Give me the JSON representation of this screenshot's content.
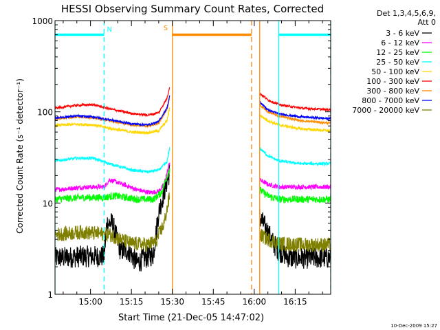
{
  "chart_data": {
    "type": "line",
    "title": "HESSI Observing Summary Count Rates, Corrected",
    "xlabel": "Start Time (21-Dec-05 14:47:02)",
    "ylabel": "Corrected Count Rate (s⁻¹ detector⁻¹)",
    "y_log": true,
    "xlim_minutes_after_14_47_02": [
      0,
      101
    ],
    "ylim": [
      1,
      1000
    ],
    "x_ticks": [
      {
        "label": "15:00",
        "min": 13
      },
      {
        "label": "15:15",
        "min": 28
      },
      {
        "label": "15:30",
        "min": 43
      },
      {
        "label": "15:45",
        "min": 58
      },
      {
        "label": "16:00",
        "min": 73
      },
      {
        "label": "16:15",
        "min": 88
      }
    ],
    "y_ticks": [
      {
        "label": "1",
        "v": 1
      },
      {
        "label": "10",
        "v": 10
      },
      {
        "label": "100",
        "v": 100
      },
      {
        "label": "1000",
        "v": 1000
      }
    ],
    "legend_header": [
      "Det 1,3,4,5,6,9,",
      "Att 0"
    ],
    "legend_placement": "right",
    "timestamp": "10-Dec-2009 15:27",
    "markers": {
      "N": {
        "label": "N",
        "color": "#00ffff",
        "level": 700,
        "bars": [
          [
            0,
            18
          ],
          [
            82,
            101
          ]
        ],
        "solid_lines": [
          0,
          82
        ],
        "dashed_lines": [
          18,
          101
        ]
      },
      "S": {
        "label": "S",
        "color": "#ff8c00",
        "level": 700,
        "bars": [
          [
            43,
            72
          ]
        ],
        "solid_lines": [
          43,
          75
        ],
        "dashed_lines": [
          72
        ]
      }
    },
    "gap_minutes": [
      43,
      75
    ],
    "series": [
      {
        "name": "3 - 6 keV",
        "color": "#000000",
        "noise": 0.12,
        "seg1": [
          [
            0,
            2.5
          ],
          [
            10,
            2.6
          ],
          [
            18,
            2.6
          ],
          [
            19,
            6
          ],
          [
            21,
            6
          ],
          [
            24,
            3
          ],
          [
            27,
            3
          ],
          [
            30,
            2.2
          ],
          [
            33,
            2.5
          ],
          [
            36,
            2.7
          ],
          [
            38,
            8
          ],
          [
            42,
            22
          ]
        ],
        "seg2": [
          [
            75,
            7
          ],
          [
            78,
            4.8
          ],
          [
            80,
            3.6
          ],
          [
            82,
            3
          ],
          [
            86,
            2.5
          ],
          [
            90,
            2.5
          ],
          [
            101,
            2.5
          ]
        ]
      },
      {
        "name": "6 - 12 keV",
        "color": "#ff00ff",
        "noise": 0.025,
        "seg1": [
          [
            0,
            14
          ],
          [
            6,
            14.5
          ],
          [
            12,
            15
          ],
          [
            18,
            15
          ],
          [
            20,
            18
          ],
          [
            25,
            16
          ],
          [
            30,
            14
          ],
          [
            35,
            13
          ],
          [
            38,
            13.5
          ],
          [
            40,
            16
          ],
          [
            42,
            28
          ]
        ],
        "seg2": [
          [
            75,
            18
          ],
          [
            78,
            16
          ],
          [
            82,
            15
          ],
          [
            90,
            15
          ],
          [
            101,
            15
          ]
        ]
      },
      {
        "name": "12 - 25 keV",
        "color": "#00ff00",
        "noise": 0.04,
        "seg1": [
          [
            0,
            11
          ],
          [
            10,
            11.5
          ],
          [
            18,
            11.5
          ],
          [
            22,
            12
          ],
          [
            30,
            11
          ],
          [
            36,
            11
          ],
          [
            39,
            13
          ],
          [
            42,
            24
          ]
        ],
        "seg2": [
          [
            75,
            14
          ],
          [
            78,
            12
          ],
          [
            82,
            11
          ],
          [
            90,
            11
          ],
          [
            101,
            11
          ]
        ]
      },
      {
        "name": "25 - 50 keV",
        "color": "#00ffff",
        "noise": 0.015,
        "seg1": [
          [
            0,
            29
          ],
          [
            8,
            31
          ],
          [
            14,
            31
          ],
          [
            20,
            27
          ],
          [
            28,
            23
          ],
          [
            34,
            22
          ],
          [
            38,
            23
          ],
          [
            41,
            28
          ],
          [
            42,
            40
          ]
        ],
        "seg2": [
          [
            75,
            40
          ],
          [
            78,
            33
          ],
          [
            82,
            29
          ],
          [
            90,
            27
          ],
          [
            101,
            27
          ]
        ]
      },
      {
        "name": "50 - 100 keV",
        "color": "#ffd700",
        "noise": 0.015,
        "seg1": [
          [
            0,
            71
          ],
          [
            8,
            73
          ],
          [
            14,
            72
          ],
          [
            20,
            66
          ],
          [
            28,
            60
          ],
          [
            34,
            59
          ],
          [
            38,
            62
          ],
          [
            41,
            80
          ],
          [
            42,
            110
          ]
        ],
        "seg2": [
          [
            75,
            92
          ],
          [
            78,
            80
          ],
          [
            82,
            72
          ],
          [
            90,
            65
          ],
          [
            101,
            62
          ]
        ]
      },
      {
        "name": "100 - 300 keV",
        "color": "#ff0000",
        "noise": 0.012,
        "seg1": [
          [
            0,
            110
          ],
          [
            8,
            118
          ],
          [
            14,
            120
          ],
          [
            20,
            108
          ],
          [
            28,
            96
          ],
          [
            34,
            92
          ],
          [
            38,
            98
          ],
          [
            41,
            140
          ],
          [
            42,
            190
          ]
        ],
        "seg2": [
          [
            75,
            160
          ],
          [
            78,
            135
          ],
          [
            82,
            120
          ],
          [
            90,
            110
          ],
          [
            101,
            105
          ]
        ]
      },
      {
        "name": "300 - 800 keV",
        "color": "#ff8c00",
        "noise": 0.012,
        "seg1": [
          [
            0,
            84
          ],
          [
            8,
            88
          ],
          [
            14,
            86
          ],
          [
            20,
            80
          ],
          [
            28,
            72
          ],
          [
            34,
            70
          ],
          [
            38,
            75
          ],
          [
            41,
            105
          ],
          [
            42,
            140
          ]
        ],
        "seg2": [
          [
            75,
            120
          ],
          [
            78,
            100
          ],
          [
            82,
            90
          ],
          [
            90,
            80
          ],
          [
            101,
            75
          ]
        ]
      },
      {
        "name": "800 - 7000 keV",
        "color": "#0000ff",
        "noise": 0.012,
        "seg1": [
          [
            0,
            86
          ],
          [
            8,
            90
          ],
          [
            14,
            88
          ],
          [
            20,
            82
          ],
          [
            28,
            74
          ],
          [
            34,
            72
          ],
          [
            38,
            78
          ],
          [
            41,
            110
          ],
          [
            42,
            150
          ]
        ],
        "seg2": [
          [
            75,
            128
          ],
          [
            78,
            105
          ],
          [
            82,
            95
          ],
          [
            90,
            88
          ],
          [
            101,
            84
          ]
        ]
      },
      {
        "name": "7000 - 20000 keV",
        "color": "#808000",
        "noise": 0.08,
        "seg1": [
          [
            0,
            4.5
          ],
          [
            10,
            4.8
          ],
          [
            20,
            4.5
          ],
          [
            24,
            4
          ],
          [
            28,
            3.6
          ],
          [
            34,
            3.5
          ],
          [
            37,
            3.8
          ],
          [
            40,
            6
          ],
          [
            42,
            12
          ]
        ],
        "seg2": [
          [
            75,
            4.5
          ],
          [
            78,
            4
          ],
          [
            82,
            3.6
          ],
          [
            90,
            3.5
          ],
          [
            101,
            3.5
          ]
        ]
      }
    ]
  }
}
